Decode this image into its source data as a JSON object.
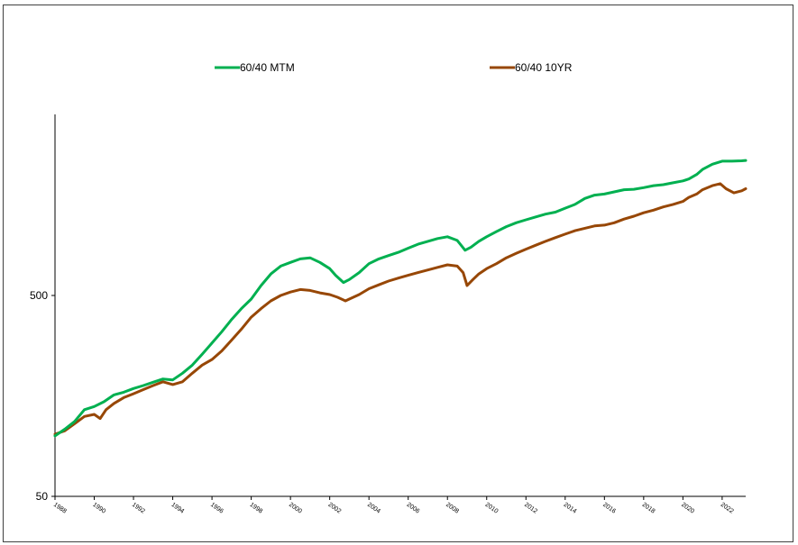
{
  "chart_data": {
    "type": "line",
    "title": "",
    "xlabel": "",
    "ylabel": "",
    "y_scale": "log",
    "ylim": [
      50,
      2400
    ],
    "xlim": [
      1988,
      2023.2
    ],
    "x_tick_labels": [
      "1988",
      "1990",
      "1992",
      "1994",
      "1996",
      "1998",
      "2000",
      "2002",
      "2004",
      "2006",
      "2008",
      "2010",
      "2012",
      "2014",
      "2016",
      "2018",
      "2020",
      "2022"
    ],
    "y_tick_labels": [
      "50",
      "500"
    ],
    "y_tick_values": [
      50,
      500
    ],
    "legend_position": "top",
    "grid": false,
    "series": [
      {
        "name": "60/40 MTM",
        "color": "#00b050",
        "points": [
          [
            1988.0,
            100
          ],
          [
            1988.5,
            108
          ],
          [
            1989.0,
            118
          ],
          [
            1989.5,
            135
          ],
          [
            1990.0,
            140
          ],
          [
            1990.5,
            148
          ],
          [
            1991.0,
            160
          ],
          [
            1991.5,
            165
          ],
          [
            1992.0,
            172
          ],
          [
            1992.5,
            178
          ],
          [
            1993.0,
            185
          ],
          [
            1993.5,
            192
          ],
          [
            1994.0,
            190
          ],
          [
            1994.5,
            205
          ],
          [
            1995.0,
            225
          ],
          [
            1995.5,
            255
          ],
          [
            1996.0,
            290
          ],
          [
            1996.5,
            330
          ],
          [
            1997.0,
            380
          ],
          [
            1997.5,
            430
          ],
          [
            1998.0,
            480
          ],
          [
            1998.5,
            560
          ],
          [
            1999.0,
            640
          ],
          [
            1999.5,
            700
          ],
          [
            2000.0,
            730
          ],
          [
            2000.5,
            760
          ],
          [
            2001.0,
            770
          ],
          [
            2001.5,
            730
          ],
          [
            2002.0,
            680
          ],
          [
            2002.3,
            630
          ],
          [
            2002.7,
            580
          ],
          [
            2003.0,
            600
          ],
          [
            2003.5,
            650
          ],
          [
            2004.0,
            720
          ],
          [
            2004.5,
            760
          ],
          [
            2005.0,
            790
          ],
          [
            2005.5,
            820
          ],
          [
            2006.0,
            860
          ],
          [
            2006.5,
            900
          ],
          [
            2007.0,
            930
          ],
          [
            2007.5,
            960
          ],
          [
            2008.0,
            980
          ],
          [
            2008.5,
            940
          ],
          [
            2008.9,
            840
          ],
          [
            2009.2,
            870
          ],
          [
            2009.6,
            930
          ],
          [
            2010.0,
            980
          ],
          [
            2010.5,
            1040
          ],
          [
            2011.0,
            1100
          ],
          [
            2011.5,
            1150
          ],
          [
            2012.0,
            1190
          ],
          [
            2012.5,
            1230
          ],
          [
            2013.0,
            1270
          ],
          [
            2013.5,
            1300
          ],
          [
            2014.0,
            1360
          ],
          [
            2014.5,
            1420
          ],
          [
            2015.0,
            1520
          ],
          [
            2015.5,
            1580
          ],
          [
            2016.0,
            1600
          ],
          [
            2016.5,
            1640
          ],
          [
            2017.0,
            1680
          ],
          [
            2017.5,
            1690
          ],
          [
            2018.0,
            1720
          ],
          [
            2018.5,
            1760
          ],
          [
            2019.0,
            1780
          ],
          [
            2019.5,
            1820
          ],
          [
            2020.0,
            1860
          ],
          [
            2020.3,
            1900
          ],
          [
            2020.7,
            2000
          ],
          [
            2021.0,
            2120
          ],
          [
            2021.5,
            2250
          ],
          [
            2022.0,
            2330
          ],
          [
            2022.5,
            2330
          ],
          [
            2023.0,
            2340
          ],
          [
            2023.2,
            2350
          ]
        ]
      },
      {
        "name": "60/40 10YR",
        "color": "#974706",
        "points": [
          [
            1988.0,
            102
          ],
          [
            1988.5,
            106
          ],
          [
            1989.0,
            115
          ],
          [
            1989.5,
            125
          ],
          [
            1990.0,
            128
          ],
          [
            1990.3,
            122
          ],
          [
            1990.6,
            135
          ],
          [
            1991.0,
            145
          ],
          [
            1991.5,
            155
          ],
          [
            1992.0,
            162
          ],
          [
            1992.5,
            170
          ],
          [
            1993.0,
            178
          ],
          [
            1993.5,
            186
          ],
          [
            1994.0,
            180
          ],
          [
            1994.5,
            186
          ],
          [
            1995.0,
            205
          ],
          [
            1995.5,
            225
          ],
          [
            1996.0,
            240
          ],
          [
            1996.5,
            265
          ],
          [
            1997.0,
            300
          ],
          [
            1997.5,
            340
          ],
          [
            1998.0,
            390
          ],
          [
            1998.5,
            430
          ],
          [
            1999.0,
            470
          ],
          [
            1999.5,
            500
          ],
          [
            2000.0,
            520
          ],
          [
            2000.5,
            535
          ],
          [
            2001.0,
            530
          ],
          [
            2001.5,
            515
          ],
          [
            2002.0,
            505
          ],
          [
            2002.4,
            490
          ],
          [
            2002.8,
            470
          ],
          [
            2003.0,
            480
          ],
          [
            2003.5,
            505
          ],
          [
            2004.0,
            540
          ],
          [
            2004.5,
            565
          ],
          [
            2005.0,
            590
          ],
          [
            2005.5,
            610
          ],
          [
            2006.0,
            630
          ],
          [
            2006.5,
            650
          ],
          [
            2007.0,
            670
          ],
          [
            2007.5,
            690
          ],
          [
            2008.0,
            710
          ],
          [
            2008.5,
            700
          ],
          [
            2008.8,
            650
          ],
          [
            2009.0,
            560
          ],
          [
            2009.3,
            600
          ],
          [
            2009.6,
            640
          ],
          [
            2010.0,
            680
          ],
          [
            2010.5,
            720
          ],
          [
            2011.0,
            770
          ],
          [
            2011.5,
            810
          ],
          [
            2012.0,
            850
          ],
          [
            2012.5,
            890
          ],
          [
            2013.0,
            930
          ],
          [
            2013.5,
            970
          ],
          [
            2014.0,
            1010
          ],
          [
            2014.5,
            1050
          ],
          [
            2015.0,
            1080
          ],
          [
            2015.5,
            1110
          ],
          [
            2016.0,
            1120
          ],
          [
            2016.5,
            1150
          ],
          [
            2017.0,
            1200
          ],
          [
            2017.5,
            1240
          ],
          [
            2018.0,
            1290
          ],
          [
            2018.5,
            1330
          ],
          [
            2019.0,
            1380
          ],
          [
            2019.5,
            1420
          ],
          [
            2020.0,
            1470
          ],
          [
            2020.3,
            1540
          ],
          [
            2020.7,
            1600
          ],
          [
            2021.0,
            1680
          ],
          [
            2021.5,
            1760
          ],
          [
            2021.9,
            1800
          ],
          [
            2022.2,
            1700
          ],
          [
            2022.6,
            1620
          ],
          [
            2023.0,
            1660
          ],
          [
            2023.2,
            1700
          ]
        ]
      }
    ]
  }
}
